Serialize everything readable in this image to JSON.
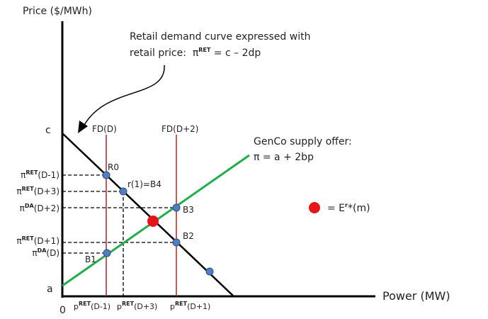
{
  "axes": {
    "y_label": "Price ($/MWh)",
    "x_label": "Power (MW)",
    "origin": "0",
    "c": "c",
    "a": "a"
  },
  "annotation": {
    "line1": "Retail demand curve expressed with",
    "line2": {
      "prefix": "retail price:  π",
      "sup": "RET",
      "suffix": " = c – 2dp"
    }
  },
  "supply": {
    "line1": "GenCo supply offer:",
    "line2": "π = a + 2bp"
  },
  "fixed_demand": [
    "FD(D)",
    "FD(D+2)"
  ],
  "price_labels": [
    {
      "base": "π",
      "sup": "RET",
      "suffix": "(D-1)"
    },
    {
      "base": "π",
      "sup": "RET",
      "suffix": "(D+3)"
    },
    {
      "base": "π",
      "sup": "DA",
      "suffix": "(D+2)"
    },
    {
      "base": "π",
      "sup": "RET",
      "suffix": "(D+1)"
    },
    {
      "base": "π",
      "sup": "DA",
      "suffix": "(D)"
    }
  ],
  "quantity_labels": [
    {
      "base": "p",
      "sup": "RET",
      "suffix": "(D-1)"
    },
    {
      "base": "p",
      "sup": "RET",
      "suffix": "(D+3)"
    },
    {
      "base": "p",
      "sup": "RET",
      "suffix": "(D+1)"
    }
  ],
  "points": [
    "R0",
    "r(1)=B4",
    "B3",
    "B2",
    "B1"
  ],
  "legend": {
    "prefix": "= E",
    "sup": "r",
    "suffix": "*(m)"
  }
}
